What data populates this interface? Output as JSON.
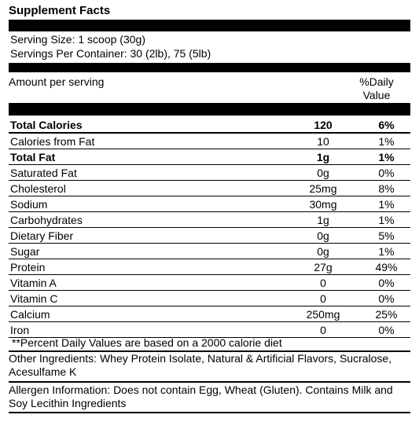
{
  "title": "Supplement Facts",
  "serving_size": "Serving Size: 1 scoop (30g)",
  "servings_per_container": "Servings Per Container: 30 (2lb), 75 (5lb)",
  "amount_per_serving": "Amount per serving",
  "daily_value_header_line1": "%Daily",
  "daily_value_header_line2": "Value",
  "rows": [
    {
      "name": "Total Calories",
      "amount": "120",
      "dv": "6%"
    },
    {
      "name": "Calories from Fat",
      "amount": "10",
      "dv": "1%"
    },
    {
      "name": "Total Fat",
      "amount": "1g",
      "dv": "1%"
    },
    {
      "name": "Saturated Fat",
      "amount": "0g",
      "dv": "0%"
    },
    {
      "name": "Cholesterol",
      "amount": "25mg",
      "dv": "8%"
    },
    {
      "name": "Sodium",
      "amount": "30mg",
      "dv": "1%"
    },
    {
      "name": "Carbohydrates",
      "amount": "1g",
      "dv": "1%"
    },
    {
      "name": "Dietary Fiber",
      "amount": "0g",
      "dv": "5%"
    },
    {
      "name": "Sugar",
      "amount": "0g",
      "dv": "1%"
    },
    {
      "name": "Protein",
      "amount": "27g",
      "dv": "49%"
    },
    {
      "name": "Vitamin A",
      "amount": "0",
      "dv": "0%"
    },
    {
      "name": "Vitamin C",
      "amount": "0",
      "dv": "0%"
    },
    {
      "name": "Calcium",
      "amount": "250mg",
      "dv": "25%"
    },
    {
      "name": "Iron",
      "amount": "0",
      "dv": "0%"
    }
  ],
  "footnote": "**Percent Daily Values are based on a 2000 calorie diet",
  "ingredients": "Other Ingredients: Whey Protein Isolate, Natural & Artificial Flavors, Sucralose, Acesulfame K",
  "allergen": "Allergen Information: Does not contain Egg, Wheat (Gluten). Contains Milk and Soy Lecithin Ingredients"
}
